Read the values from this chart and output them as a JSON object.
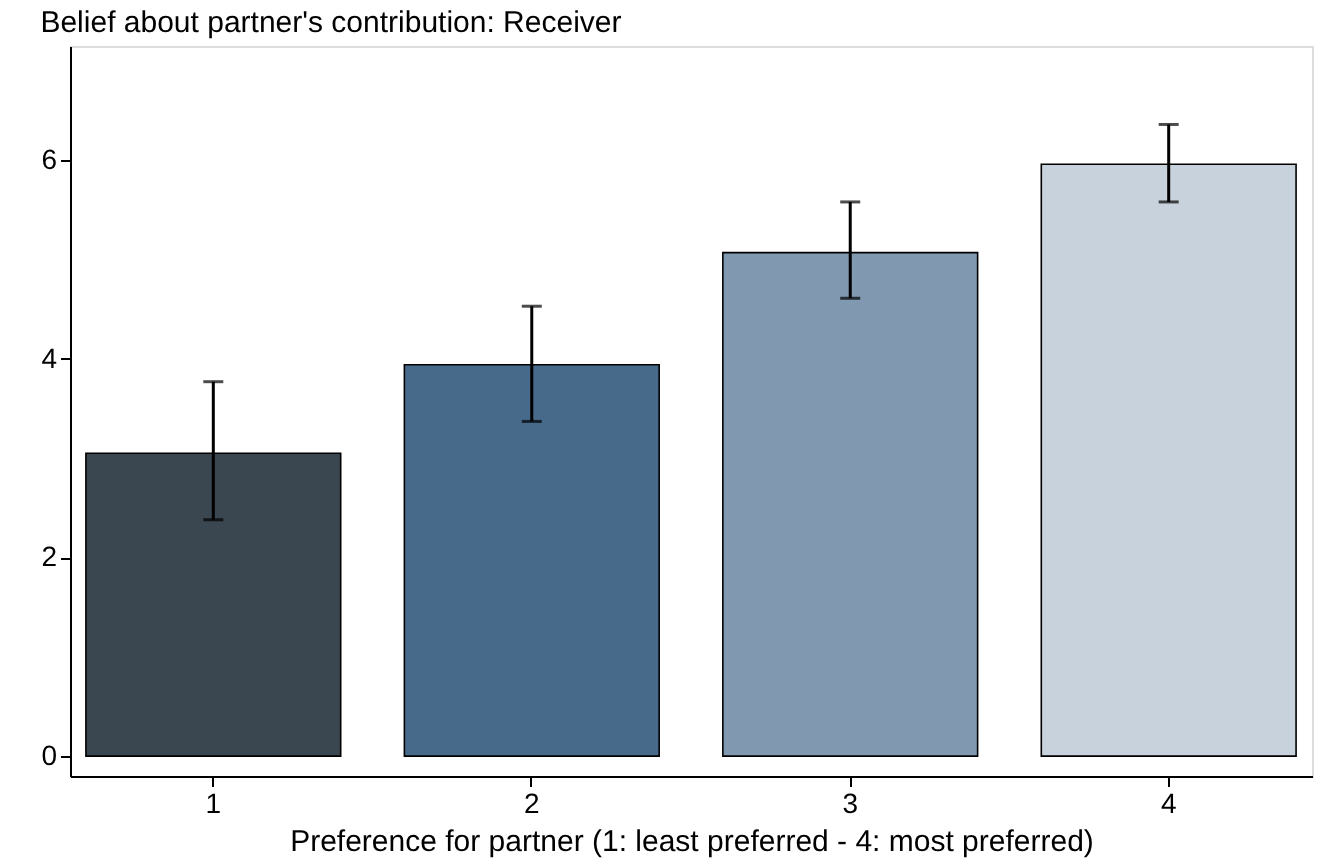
{
  "chart_data": {
    "type": "bar",
    "title": "Belief about partner's contribution: Receiver",
    "xlabel": "Preference for partner (1: least preferred - 4: most preferred)",
    "categories": [
      "1",
      "2",
      "3",
      "4"
    ],
    "values": [
      3.05,
      3.94,
      5.07,
      5.96
    ],
    "colors": [
      "#3a4650",
      "#486a8a",
      "#8099b0",
      "#c8d2dd"
    ],
    "errors": [
      [
        2.38,
        3.77
      ],
      [
        3.37,
        4.53
      ],
      [
        4.61,
        5.58
      ],
      [
        5.58,
        6.36
      ]
    ],
    "ylim": [
      -0.2,
      7.15
    ],
    "yticks": [
      0,
      2,
      4,
      6
    ],
    "grid": false
  }
}
